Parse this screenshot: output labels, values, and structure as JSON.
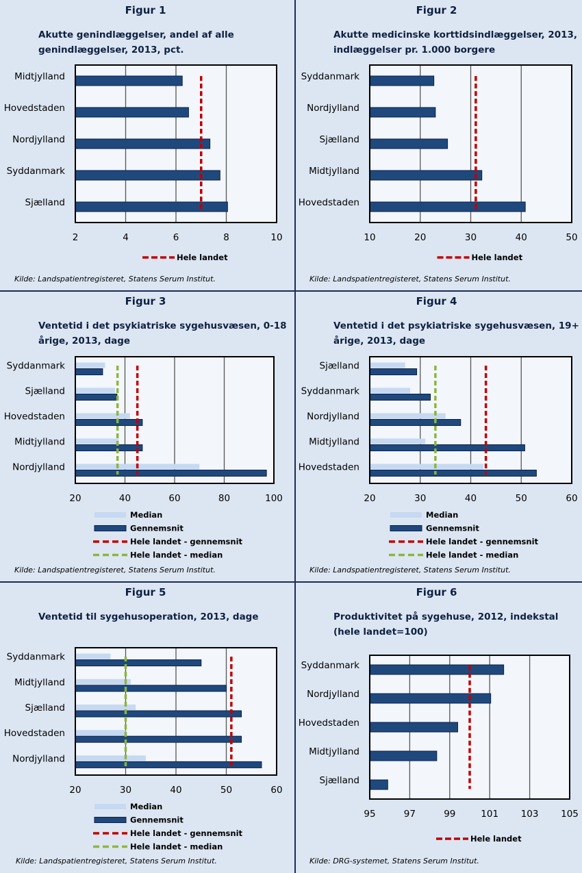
{
  "colors": {
    "background": "#dce6f2",
    "plot_background": "#f3f6fa",
    "bar_gennemsnit": "#1f497d",
    "bar_gennemsnit_border": "#0c1f4d",
    "bar_median": "#c6d9f1",
    "line_hele_landet": "#c00000",
    "line_median": "#8db53c",
    "divider": "#1b2a5c"
  },
  "chart_data": [
    {
      "id": "fig1",
      "figure_label": "Figur 1",
      "type": "bar",
      "orientation": "horizontal",
      "title": "Akutte genindlæggelser, andel af alle genindlæggelser, 2013, pct.",
      "title_lines": [
        "Akutte genindlæggelser, andel af alle",
        "genindlæggelser, 2013, pct."
      ],
      "categories": [
        "Midtjylland",
        "Hovedstaden",
        "Nordjylland",
        "Syddanmark",
        "Sjælland"
      ],
      "series": [
        {
          "name": "Region",
          "values": [
            6.25,
            6.5,
            7.35,
            7.75,
            8.05
          ]
        }
      ],
      "reference_lines": [
        {
          "name": "Hele landet",
          "value": 7.0,
          "color": "#c00000"
        }
      ],
      "xlim": [
        2,
        10
      ],
      "xticks": [
        2,
        4,
        6,
        8,
        10
      ],
      "grid": true,
      "legend": [
        "Hele landet"
      ],
      "legend_position": "bottom",
      "source": "Kilde: Landspatientregisteret, Statens Serum Institut."
    },
    {
      "id": "fig2",
      "figure_label": "Figur 2",
      "type": "bar",
      "orientation": "horizontal",
      "title": "Akutte medicinske korttidsindlæggelser, 2013, indlæggelser pr. 1.000 borgere",
      "title_lines": [
        "Akutte medicinske korttidsindlæggelser, 2013,",
        "indlæggelser pr. 1.000 borgere"
      ],
      "categories": [
        "Syddanmark",
        "Nordjylland",
        "Sjælland",
        "Midtjylland",
        "Hovedstaden"
      ],
      "series": [
        {
          "name": "Region",
          "values": [
            22.7,
            23.0,
            25.4,
            32.2,
            40.8
          ]
        }
      ],
      "reference_lines": [
        {
          "name": "Hele landet",
          "value": 31.0,
          "color": "#c00000"
        }
      ],
      "xlim": [
        10,
        50
      ],
      "xticks": [
        10,
        20,
        30,
        40,
        50
      ],
      "grid": true,
      "legend": [
        "Hele landet"
      ],
      "legend_position": "bottom",
      "source": "Kilde: Landspatientregisteret, Statens Serum Institut."
    },
    {
      "id": "fig3",
      "figure_label": "Figur 3",
      "type": "bar",
      "orientation": "horizontal",
      "title": "Ventetid i det psykiatriske sygehusvæsen, 0-18 årige, 2013, dage",
      "title_lines": [
        "Ventetid i det psykiatriske sygehusvæsen, 0-18",
        "årige, 2013, dage"
      ],
      "categories": [
        "Syddanmark",
        "Sjælland",
        "Hovedstaden",
        "Midtjylland",
        "Nordjylland"
      ],
      "series": [
        {
          "name": "Median",
          "values": [
            32,
            36,
            42,
            37.5,
            70
          ]
        },
        {
          "name": "Gennemsnit",
          "values": [
            31,
            36.8,
            47,
            47,
            97
          ]
        }
      ],
      "reference_lines": [
        {
          "name": "Hele landet - gennemsnit",
          "value": 45,
          "color": "#c00000"
        },
        {
          "name": "Hele landet - median",
          "value": 37,
          "color": "#8db53c"
        }
      ],
      "xlim": [
        20,
        100
      ],
      "xticks": [
        20,
        40,
        60,
        80,
        100
      ],
      "grid": true,
      "legend": [
        "Median",
        "Gennemsnit",
        "Hele landet - gennemsnit",
        "Hele landet - median"
      ],
      "legend_position": "bottom",
      "source": "Kilde: Landspatientregisteret, Statens Serum Institut."
    },
    {
      "id": "fig4",
      "figure_label": "Figur 4",
      "type": "bar",
      "orientation": "horizontal",
      "title": "Ventetid i det psykiatriske sygehusvæsen, 19+ årige, 2013, dage",
      "title_lines": [
        "Ventetid i det psykiatriske sygehusvæsen, 19+",
        "årige, 2013, dage"
      ],
      "categories": [
        "Sjælland",
        "Syddanmark",
        "Nordjylland",
        "Midtjylland",
        "Hovedstaden"
      ],
      "series": [
        {
          "name": "Median",
          "values": [
            27,
            28,
            35,
            31,
            42.5
          ]
        },
        {
          "name": "Gennemsnit",
          "values": [
            29.3,
            32,
            38,
            50.7,
            53
          ]
        }
      ],
      "reference_lines": [
        {
          "name": "Hele landet - gennemsnit",
          "value": 43,
          "color": "#c00000"
        },
        {
          "name": "Hele landet - median",
          "value": 33,
          "color": "#8db53c"
        }
      ],
      "xlim": [
        20,
        60
      ],
      "xticks": [
        20,
        30,
        40,
        50,
        60
      ],
      "grid": true,
      "legend": [
        "Median",
        "Gennemsnit",
        "Hele landet - gennemsnit",
        "Hele landet - median"
      ],
      "legend_position": "bottom",
      "source": "Kilde: Landspatientregisteret, Statens Serum Institut."
    },
    {
      "id": "fig5",
      "figure_label": "Figur 5",
      "type": "bar",
      "orientation": "horizontal",
      "title": "Ventetid til sygehusoperation, 2013, dage",
      "title_lines": [
        "Ventetid til sygehusoperation, 2013, dage"
      ],
      "categories": [
        "Syddanmark",
        "Midtjylland",
        "Sjælland",
        "Hovedstaden",
        "Nordjylland"
      ],
      "series": [
        {
          "name": "Median",
          "values": [
            27,
            31,
            32,
            30,
            34
          ]
        },
        {
          "name": "Gennemsnit",
          "values": [
            45,
            50,
            53,
            53,
            57
          ]
        }
      ],
      "reference_lines": [
        {
          "name": "Hele landet - gennemsnit",
          "value": 51,
          "color": "#c00000"
        },
        {
          "name": "Hele landet - median",
          "value": 30,
          "color": "#8db53c"
        }
      ],
      "xlim": [
        20,
        60
      ],
      "xticks": [
        20,
        30,
        40,
        50,
        60
      ],
      "grid": true,
      "legend": [
        "Median",
        "Gennemsnit",
        "Hele landet - gennemsnit",
        "Hele landet - median"
      ],
      "legend_position": "bottom",
      "source": "Kilde: Landspatientregisteret, Statens Serum Institut."
    },
    {
      "id": "fig6",
      "figure_label": "Figur 6",
      "type": "bar",
      "orientation": "horizontal",
      "title": "Produktivitet på sygehuse, 2012, indekstal (hele landet=100)",
      "title_lines": [
        "Produktivitet på sygehuse, 2012, indekstal",
        "(hele landet=100)"
      ],
      "categories": [
        "Syddanmark",
        "Nordjylland",
        "Hovedstaden",
        "Midtjylland",
        "Sjælland"
      ],
      "series": [
        {
          "name": "Region",
          "values": [
            101.7,
            101.05,
            99.4,
            98.35,
            95.9
          ]
        }
      ],
      "reference_lines": [
        {
          "name": "Hele landet",
          "value": 100,
          "color": "#c00000"
        }
      ],
      "xlim": [
        95,
        105
      ],
      "xticks": [
        95,
        97,
        99,
        101,
        103,
        105
      ],
      "grid": true,
      "legend": [
        "Hele landet"
      ],
      "legend_position": "bottom",
      "source": "Kilde: DRG-systemet, Statens Serum Institut."
    }
  ]
}
